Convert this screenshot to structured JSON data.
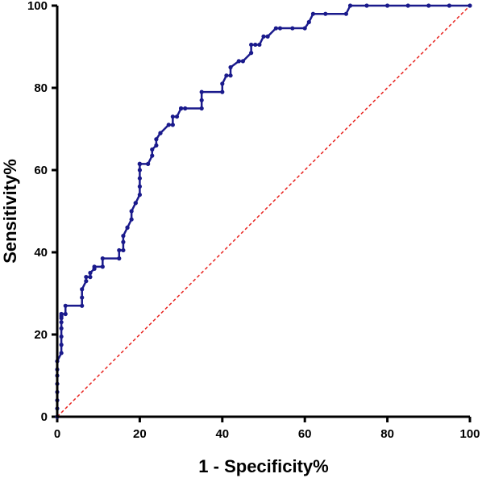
{
  "chart_data": {
    "type": "line",
    "title": "",
    "xlabel": "1 - Specificity%",
    "ylabel": "Sensitivity%",
    "xlim": [
      0,
      100
    ],
    "ylim": [
      0,
      100
    ],
    "xticks": [
      "0",
      "20",
      "40",
      "60",
      "80",
      "100"
    ],
    "yticks": [
      "0",
      "20",
      "40",
      "60",
      "80",
      "100"
    ],
    "grid": false,
    "colors": {
      "curve": "#1a1a8c",
      "reference": "#e8231f",
      "axis": "#000000"
    },
    "series": [
      {
        "style": "step line with dot markers",
        "x": [
          0,
          0,
          0,
          0,
          0,
          0,
          0,
          0,
          1,
          1,
          1,
          1,
          1,
          1,
          1,
          1,
          2,
          2,
          6,
          6,
          6,
          7,
          7,
          8,
          8,
          9,
          9,
          11,
          11,
          15,
          15,
          16,
          16,
          16,
          17,
          17,
          18,
          18,
          19,
          19,
          20,
          20,
          20,
          20,
          20,
          20,
          20,
          20,
          22,
          23,
          23,
          24,
          24,
          25,
          25,
          27,
          28,
          28,
          29,
          30,
          30,
          31,
          35,
          35,
          35,
          40,
          40,
          41,
          42,
          42,
          44,
          45,
          47,
          47,
          48,
          49,
          50,
          51,
          53,
          54,
          57,
          60,
          61,
          62,
          65,
          70,
          71,
          75,
          80,
          85,
          90,
          95,
          100
        ],
        "y": [
          0,
          2,
          4,
          6,
          8,
          10,
          11.5,
          13.5,
          15.5,
          17.5,
          19.5,
          21.5,
          23,
          24,
          24.5,
          25,
          25,
          27,
          27,
          29,
          31,
          33,
          34,
          34,
          35,
          36,
          36.5,
          36.5,
          38.5,
          38.5,
          40.5,
          40.5,
          42.5,
          44,
          46,
          46,
          48,
          50,
          52,
          52,
          54,
          56,
          58,
          60,
          61.5,
          61.5,
          61.5,
          61.5,
          61.5,
          63.5,
          65,
          66,
          67.5,
          69,
          69,
          71,
          71,
          73,
          73,
          75,
          75,
          75,
          75,
          77,
          79,
          79,
          81,
          83,
          83,
          85,
          86.5,
          86.5,
          88.5,
          90.5,
          90.5,
          90.5,
          92.5,
          92.5,
          94.5,
          94.5,
          94.5,
          94.5,
          96,
          98,
          98,
          98,
          100,
          100,
          100,
          100,
          100,
          100,
          100
        ]
      },
      {
        "style": "dashed diagonal reference",
        "x": [
          0,
          100
        ],
        "y": [
          0,
          100
        ]
      }
    ]
  }
}
